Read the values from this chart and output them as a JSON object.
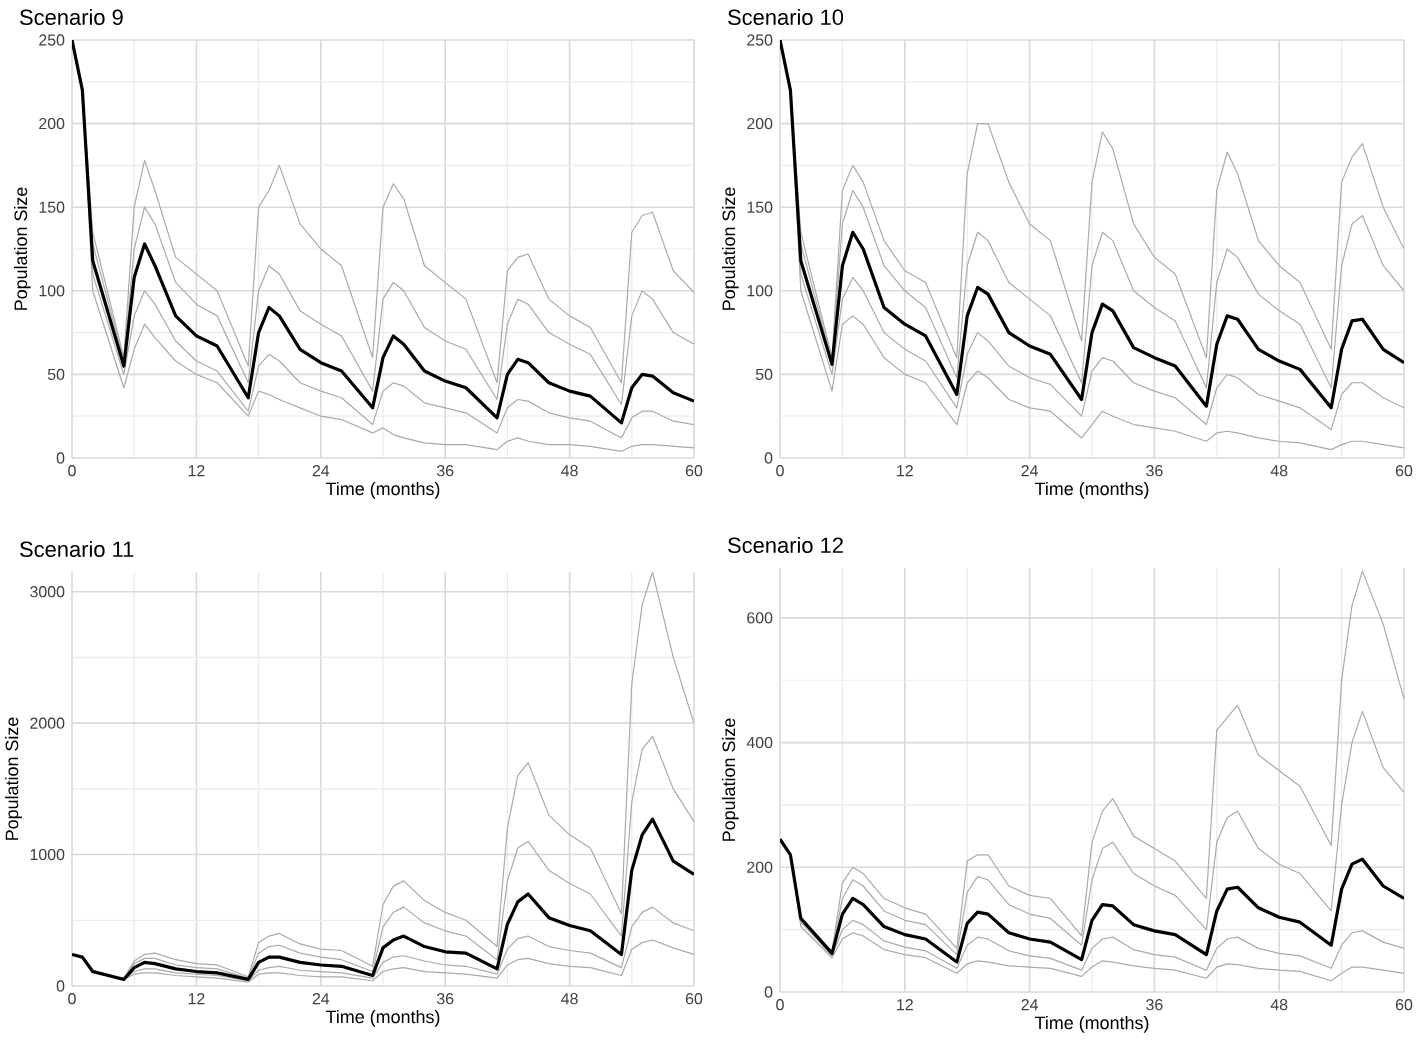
{
  "chart_data": [
    {
      "type": "line",
      "title": "Scenario 9",
      "xlabel": "Time (months)",
      "ylabel": "Population Size",
      "grid": true,
      "marker": "none",
      "line_style": "solid",
      "x": [
        0,
        1,
        2,
        5,
        6,
        7,
        8,
        10,
        12,
        14,
        17,
        18,
        19,
        20,
        22,
        24,
        26,
        29,
        30,
        31,
        32,
        34,
        36,
        38,
        41,
        42,
        43,
        44,
        46,
        48,
        50,
        53,
        54,
        55,
        56,
        58,
        60
      ],
      "xlim": [
        0,
        60
      ],
      "ylim": [
        0,
        250
      ],
      "xticks": [
        0,
        12,
        24,
        36,
        48,
        60
      ],
      "yticks": [
        0,
        50,
        100,
        150,
        200,
        250
      ],
      "series": [
        {
          "color": "#aaaaaa",
          "values": [
            250,
            220,
            135,
            60,
            150,
            178,
            160,
            120,
            110,
            100,
            55,
            150,
            160,
            175,
            140,
            125,
            115,
            60,
            150,
            164,
            155,
            115,
            105,
            95,
            45,
            112,
            120,
            122,
            95,
            85,
            78,
            45,
            135,
            145,
            147,
            112,
            99
          ]
        },
        {
          "color": "#aaaaaa",
          "values": [
            250,
            220,
            128,
            58,
            125,
            150,
            140,
            105,
            92,
            85,
            45,
            100,
            115,
            110,
            88,
            80,
            73,
            40,
            95,
            105,
            100,
            78,
            70,
            65,
            35,
            80,
            95,
            92,
            75,
            68,
            62,
            32,
            85,
            100,
            95,
            75,
            68
          ]
        },
        {
          "color": "#aaaaaa",
          "values": [
            250,
            220,
            110,
            50,
            85,
            100,
            92,
            70,
            58,
            52,
            28,
            55,
            62,
            58,
            45,
            40,
            36,
            20,
            40,
            45,
            43,
            33,
            30,
            27,
            15,
            30,
            35,
            34,
            27,
            24,
            22,
            12,
            24,
            28,
            28,
            22,
            20
          ]
        },
        {
          "color": "#aaaaaa",
          "values": [
            250,
            220,
            100,
            42,
            65,
            80,
            72,
            58,
            50,
            45,
            25,
            40,
            38,
            35,
            30,
            25,
            23,
            15,
            18,
            14,
            12,
            9,
            8,
            8,
            5,
            10,
            12,
            10,
            8,
            8,
            7,
            4,
            7,
            8,
            8,
            7,
            6
          ]
        },
        {
          "color": "#000000",
          "values": [
            250,
            220,
            118,
            55,
            108,
            128,
            115,
            85,
            73,
            67,
            36,
            75,
            90,
            85,
            65,
            57,
            52,
            30,
            60,
            73,
            68,
            52,
            46,
            42,
            24,
            50,
            59,
            57,
            45,
            40,
            37,
            21,
            42,
            50,
            49,
            39,
            34
          ]
        }
      ]
    },
    {
      "type": "line",
      "title": "Scenario 10",
      "xlabel": "Time (months)",
      "ylabel": "Population Size",
      "grid": true,
      "marker": "none",
      "line_style": "solid",
      "x": [
        0,
        1,
        2,
        5,
        6,
        7,
        8,
        10,
        12,
        14,
        17,
        18,
        19,
        20,
        22,
        24,
        26,
        29,
        30,
        31,
        32,
        34,
        36,
        38,
        41,
        42,
        43,
        44,
        46,
        48,
        50,
        53,
        54,
        55,
        56,
        58,
        60
      ],
      "xlim": [
        0,
        60
      ],
      "ylim": [
        0,
        250
      ],
      "xticks": [
        0,
        12,
        24,
        36,
        48,
        60
      ],
      "yticks": [
        0,
        50,
        100,
        150,
        200,
        250
      ],
      "series": [
        {
          "color": "#aaaaaa",
          "values": [
            250,
            220,
            135,
            60,
            160,
            175,
            165,
            130,
            112,
            105,
            60,
            170,
            200,
            200,
            165,
            140,
            130,
            70,
            165,
            195,
            185,
            140,
            120,
            110,
            60,
            160,
            183,
            170,
            130,
            115,
            105,
            65,
            165,
            180,
            188,
            150,
            125
          ]
        },
        {
          "color": "#aaaaaa",
          "values": [
            250,
            220,
            128,
            58,
            140,
            160,
            150,
            115,
            100,
            90,
            48,
            115,
            135,
            130,
            105,
            95,
            85,
            45,
            115,
            135,
            130,
            100,
            90,
            82,
            42,
            105,
            125,
            120,
            98,
            88,
            80,
            42,
            115,
            140,
            145,
            115,
            100
          ]
        },
        {
          "color": "#aaaaaa",
          "values": [
            250,
            220,
            110,
            50,
            95,
            108,
            100,
            75,
            65,
            58,
            30,
            62,
            75,
            70,
            55,
            48,
            44,
            25,
            52,
            60,
            58,
            45,
            40,
            36,
            20,
            42,
            50,
            48,
            38,
            34,
            30,
            17,
            38,
            45,
            45,
            36,
            30
          ]
        },
        {
          "color": "#aaaaaa",
          "values": [
            250,
            220,
            100,
            40,
            80,
            85,
            80,
            60,
            50,
            45,
            20,
            45,
            52,
            48,
            35,
            30,
            28,
            12,
            20,
            28,
            25,
            20,
            18,
            16,
            10,
            15,
            16,
            15,
            12,
            10,
            9,
            5,
            8,
            10,
            10,
            8,
            6
          ]
        },
        {
          "color": "#000000",
          "values": [
            250,
            220,
            118,
            56,
            115,
            135,
            125,
            90,
            80,
            73,
            38,
            85,
            102,
            98,
            75,
            67,
            62,
            35,
            75,
            92,
            88,
            66,
            60,
            55,
            31,
            68,
            85,
            83,
            65,
            58,
            53,
            30,
            65,
            82,
            83,
            65,
            57
          ]
        }
      ]
    },
    {
      "type": "line",
      "title": "Scenario 11",
      "xlabel": "Time (months)",
      "ylabel": "Population Size",
      "grid": true,
      "marker": "none",
      "line_style": "solid",
      "x": [
        0,
        1,
        2,
        5,
        6,
        7,
        8,
        10,
        12,
        14,
        17,
        18,
        19,
        20,
        22,
        24,
        26,
        29,
        30,
        31,
        32,
        34,
        36,
        38,
        41,
        42,
        43,
        44,
        46,
        48,
        50,
        53,
        54,
        55,
        56,
        58,
        60
      ],
      "xlim": [
        0,
        60
      ],
      "ylim": [
        0,
        3150
      ],
      "xticks": [
        0,
        12,
        24,
        36,
        48,
        60
      ],
      "yticks": [
        0,
        1000,
        2000,
        3000
      ],
      "series": [
        {
          "color": "#aaaaaa",
          "values": [
            240,
            220,
            120,
            60,
            190,
            240,
            250,
            200,
            170,
            160,
            70,
            330,
            380,
            400,
            320,
            280,
            270,
            150,
            620,
            760,
            800,
            650,
            560,
            500,
            300,
            1200,
            1600,
            1700,
            1300,
            1150,
            1050,
            550,
            2300,
            2900,
            3150,
            2500,
            2000
          ]
        },
        {
          "color": "#aaaaaa",
          "values": [
            240,
            220,
            120,
            50,
            170,
            210,
            210,
            160,
            140,
            130,
            60,
            250,
            300,
            310,
            250,
            220,
            200,
            110,
            450,
            560,
            600,
            480,
            420,
            380,
            200,
            800,
            1050,
            1100,
            880,
            780,
            700,
            380,
            1400,
            1800,
            1900,
            1500,
            1250
          ]
        },
        {
          "color": "#aaaaaa",
          "values": [
            240,
            220,
            110,
            50,
            110,
            130,
            130,
            100,
            90,
            80,
            40,
            120,
            140,
            150,
            120,
            110,
            100,
            60,
            180,
            220,
            230,
            190,
            160,
            150,
            90,
            280,
            360,
            380,
            300,
            270,
            250,
            140,
            450,
            560,
            600,
            480,
            420
          ]
        },
        {
          "color": "#aaaaaa",
          "values": [
            240,
            220,
            100,
            50,
            90,
            100,
            100,
            80,
            70,
            60,
            30,
            90,
            100,
            100,
            80,
            70,
            70,
            40,
            110,
            130,
            140,
            110,
            100,
            90,
            60,
            160,
            200,
            210,
            170,
            150,
            140,
            80,
            280,
            330,
            350,
            290,
            240
          ]
        },
        {
          "color": "#000000",
          "values": [
            240,
            220,
            110,
            50,
            140,
            180,
            170,
            130,
            110,
            100,
            50,
            180,
            220,
            220,
            180,
            160,
            150,
            80,
            290,
            350,
            380,
            300,
            260,
            250,
            130,
            470,
            640,
            700,
            520,
            460,
            420,
            240,
            880,
            1150,
            1270,
            950,
            850
          ]
        }
      ]
    },
    {
      "type": "line",
      "title": "Scenario 12",
      "xlabel": "Time (months)",
      "ylabel": "Population Size",
      "grid": true,
      "marker": "none",
      "line_style": "solid",
      "x": [
        0,
        1,
        2,
        5,
        6,
        7,
        8,
        10,
        12,
        14,
        17,
        18,
        19,
        20,
        22,
        24,
        26,
        29,
        30,
        31,
        32,
        34,
        36,
        38,
        41,
        42,
        43,
        44,
        46,
        48,
        50,
        53,
        54,
        55,
        56,
        58,
        60
      ],
      "xlim": [
        0,
        60
      ],
      "ylim": [
        0,
        680
      ],
      "xticks": [
        0,
        12,
        24,
        36,
        48,
        60
      ],
      "yticks": [
        0,
        200,
        400,
        600
      ],
      "series": [
        {
          "color": "#aaaaaa",
          "values": [
            245,
            220,
            120,
            65,
            175,
            200,
            190,
            150,
            135,
            125,
            70,
            210,
            220,
            220,
            170,
            155,
            150,
            90,
            240,
            290,
            310,
            250,
            230,
            210,
            150,
            420,
            440,
            460,
            380,
            355,
            330,
            235,
            500,
            620,
            675,
            590,
            470
          ]
        },
        {
          "color": "#aaaaaa",
          "values": [
            245,
            220,
            118,
            63,
            150,
            180,
            170,
            130,
            115,
            108,
            60,
            160,
            185,
            180,
            140,
            125,
            118,
            75,
            180,
            230,
            240,
            190,
            170,
            155,
            100,
            240,
            280,
            290,
            230,
            205,
            190,
            130,
            300,
            400,
            450,
            360,
            320
          ]
        },
        {
          "color": "#aaaaaa",
          "values": [
            245,
            220,
            112,
            58,
            100,
            115,
            108,
            82,
            72,
            66,
            38,
            75,
            88,
            85,
            66,
            58,
            54,
            35,
            70,
            85,
            88,
            68,
            60,
            56,
            35,
            70,
            85,
            88,
            70,
            62,
            58,
            38,
            75,
            95,
            98,
            80,
            70
          ]
        },
        {
          "color": "#aaaaaa",
          "values": [
            245,
            220,
            105,
            55,
            85,
            95,
            90,
            68,
            60,
            55,
            30,
            45,
            50,
            48,
            42,
            40,
            38,
            25,
            40,
            50,
            48,
            42,
            38,
            35,
            22,
            40,
            45,
            44,
            38,
            35,
            33,
            18,
            30,
            40,
            40,
            35,
            30
          ]
        },
        {
          "color": "#000000",
          "values": [
            245,
            220,
            118,
            62,
            125,
            150,
            140,
            105,
            92,
            85,
            48,
            110,
            128,
            125,
            95,
            85,
            80,
            52,
            115,
            140,
            138,
            108,
            98,
            92,
            60,
            130,
            165,
            168,
            135,
            120,
            112,
            75,
            165,
            205,
            213,
            170,
            150
          ]
        }
      ]
    }
  ]
}
